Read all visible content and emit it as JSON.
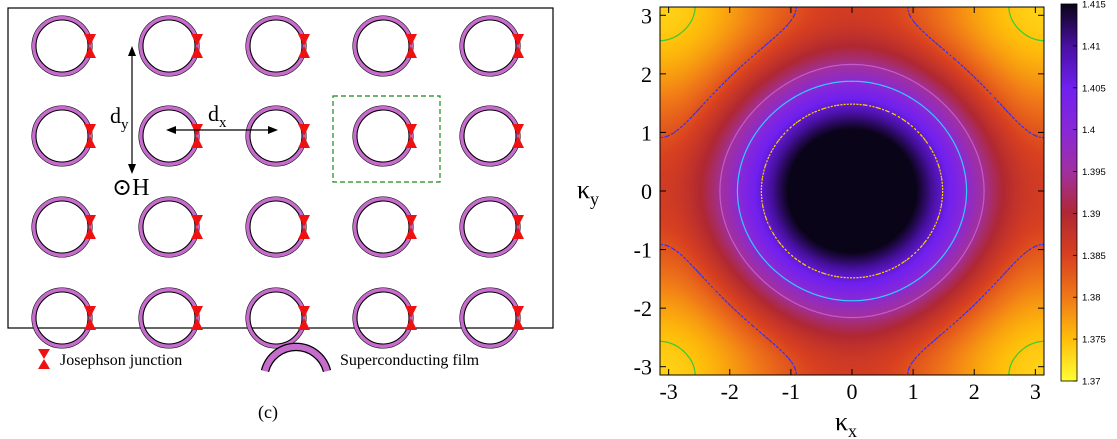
{
  "diagram": {
    "rows": 4,
    "cols": 5,
    "ring_color": "#c66ccc",
    "junction_color": "#ee1111",
    "unit_cell_color": "#1a8a1a",
    "labels": {
      "dy": "d",
      "dy_sub": "y",
      "dx": "d",
      "dx_sub": "x",
      "field_symbol": "⊙",
      "field": "H",
      "panel": "(c)"
    },
    "legend": {
      "junction": "Josephson junction",
      "film": "Superconducting film"
    }
  },
  "chart_data": {
    "type": "heatmap",
    "title": "",
    "xlabel": "κ",
    "xlabel_sub": "x",
    "ylabel": "κ",
    "ylabel_sub": "y",
    "xlim": [
      -3.14159,
      3.14159
    ],
    "ylim": [
      -3.14159,
      3.14159
    ],
    "xticks": [
      -3,
      -2,
      -1,
      0,
      1,
      2,
      3
    ],
    "yticks": [
      -3,
      -2,
      -1,
      0,
      1,
      2,
      3
    ],
    "colorbar": {
      "min": 1.37,
      "max": 1.415,
      "ticks": [
        "1.37",
        "1.375",
        "1.38",
        "1.385",
        "1.39",
        "1.395",
        "1.4",
        "1.405",
        "1.41",
        "1.415"
      ],
      "colors": [
        "#ffff33",
        "#ffbe0a",
        "#f07818",
        "#d84020",
        "#b02832",
        "#a030a0",
        "#8828d8",
        "#7020f0",
        "#4810a0",
        "#0a0418"
      ]
    },
    "contours": [
      {
        "level": 1.407,
        "color": "#ffd700",
        "style": "dotted"
      },
      {
        "level": 1.3995,
        "color": "#33ccff",
        "style": "dashdot"
      },
      {
        "level": 1.3945,
        "color": "#e080ff",
        "style": "solid"
      },
      {
        "level": 1.3835,
        "color": "#3030ff",
        "style": "dotted"
      },
      {
        "level": 1.3745,
        "color": "#33cc33",
        "style": "solid"
      }
    ]
  }
}
